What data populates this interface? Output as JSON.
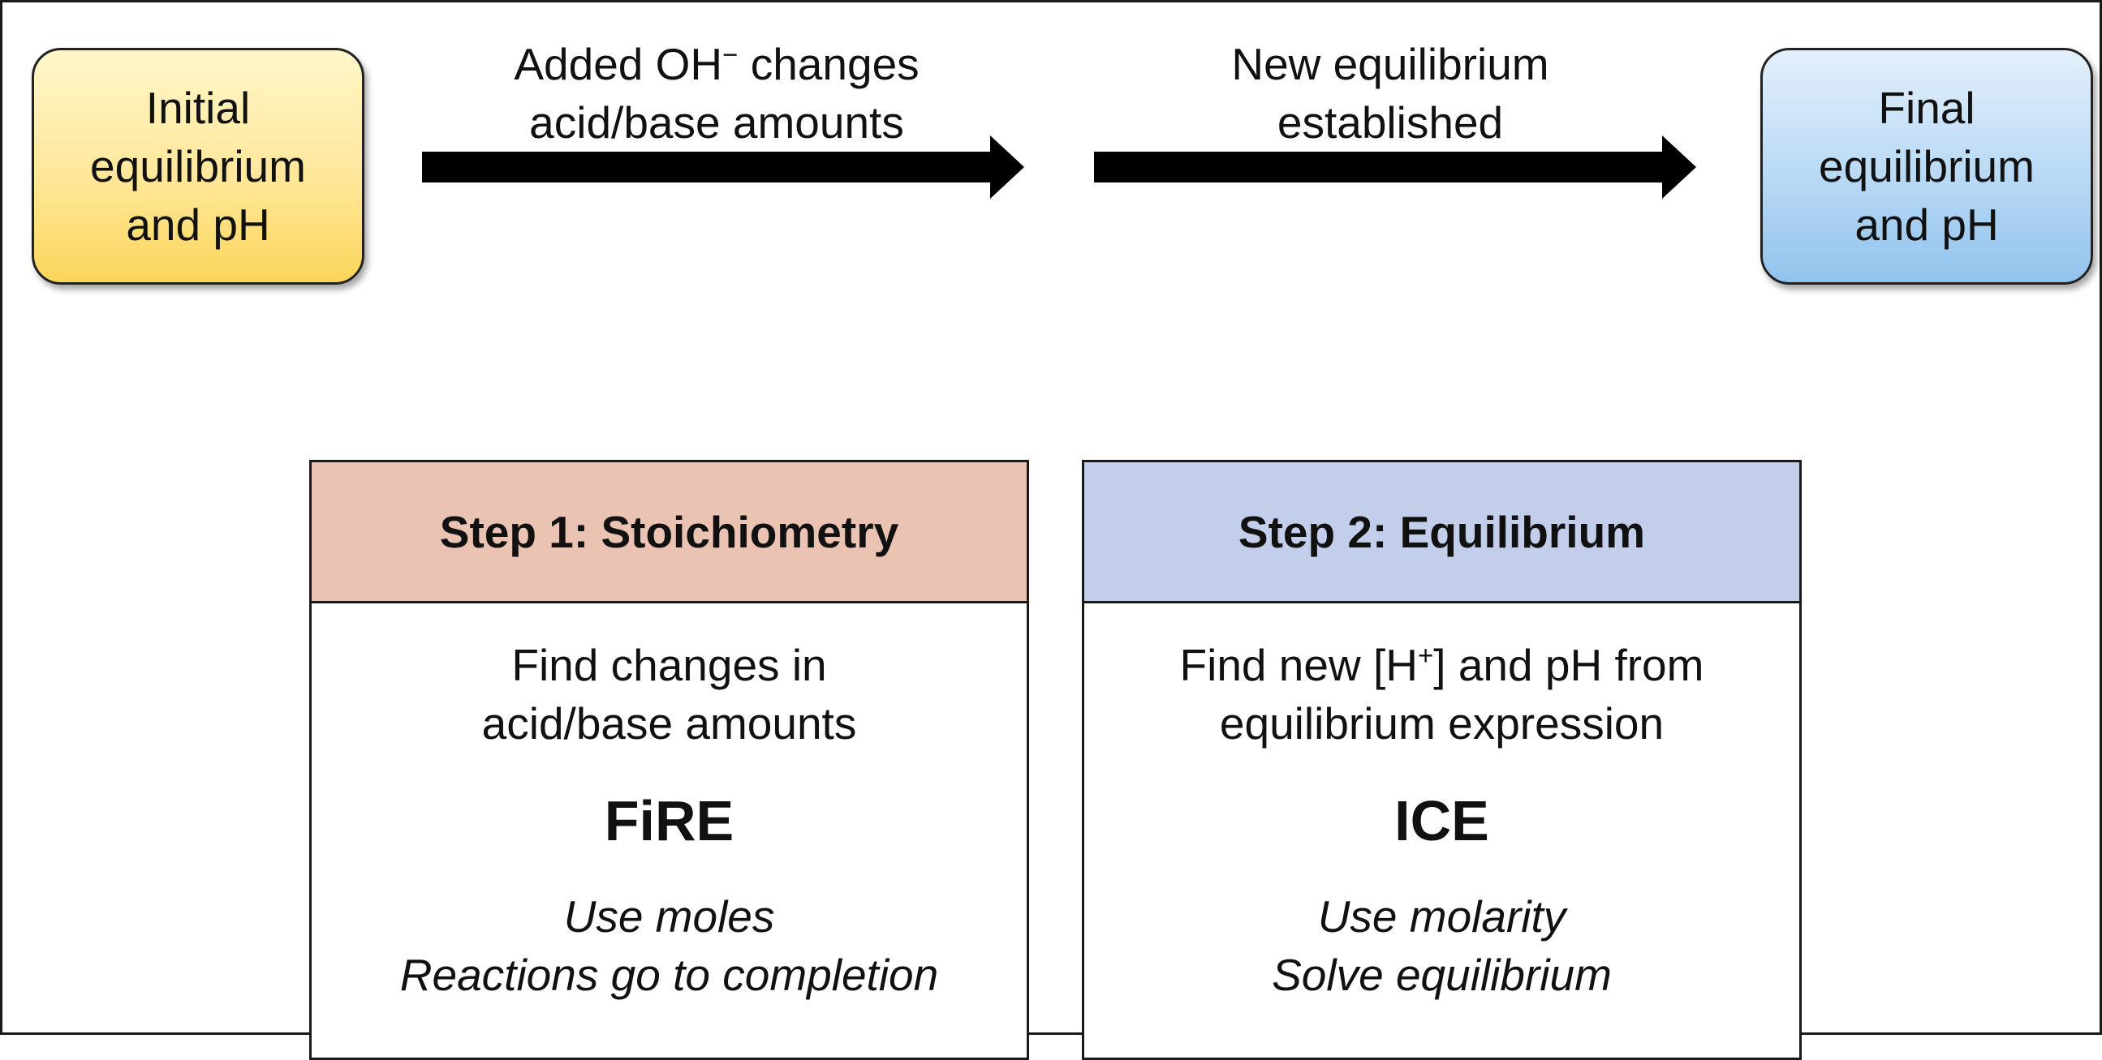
{
  "initial_state": {
    "lines": [
      "Initial",
      "equilibrium",
      "and pH"
    ],
    "color": "#fbd65a"
  },
  "final_state": {
    "lines": [
      "Final",
      "equilibrium",
      "and pH"
    ],
    "color": "#91c3ec"
  },
  "arrow_1": {
    "label_line1_pre": "Added OH",
    "label_line1_sup": "−",
    "label_line1_post": " changes",
    "label_line2": "acid/base amounts"
  },
  "arrow_2": {
    "label_line1": "New equilibrium",
    "label_line2": "established"
  },
  "steps": [
    {
      "title": "Step 1:  Stoichiometry",
      "header_color": "#ebc3b3",
      "desc_line1": "Find changes in",
      "desc_line2": "acid/base amounts",
      "method": "FiRE",
      "note_line1": "Use moles",
      "note_line2": "Reactions go to completion"
    },
    {
      "title": "Step 2:  Equilibrium",
      "header_color": "#c3cfea",
      "desc_line1_pre": "Find new [H",
      "desc_line1_sup": "+",
      "desc_line1_post": "] and pH from",
      "desc_line2": "equilibrium expression",
      "method": "ICE",
      "note_line1": "Use molarity",
      "note_line2": "Solve equilibrium"
    }
  ]
}
